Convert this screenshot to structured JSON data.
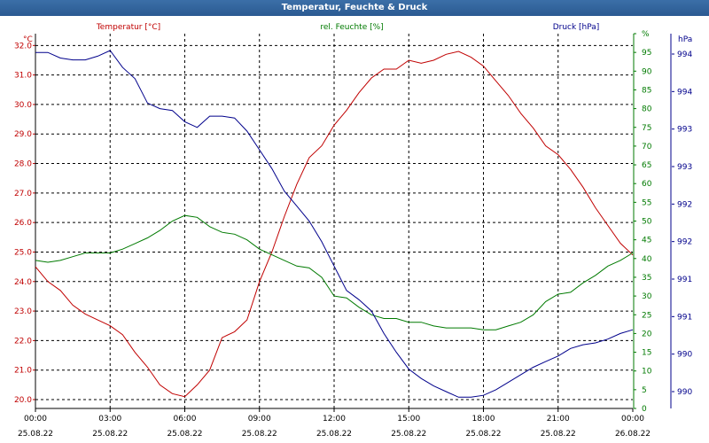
{
  "window": {
    "title": "Temperatur, Feuchte & Druck"
  },
  "colors": {
    "temperature": "#c00000",
    "humidity": "#007a00",
    "pressure": "#00008b",
    "grid": "#000000",
    "titlebar": "#2b5a91"
  },
  "chart_data": {
    "type": "line",
    "title": "Temperatur, Feuchte & Druck",
    "grid": true,
    "x_ticks": [
      {
        "time": "00:00",
        "date": "25.08.22"
      },
      {
        "time": "03:00",
        "date": "25.08.22"
      },
      {
        "time": "06:00",
        "date": "25.08.22"
      },
      {
        "time": "09:00",
        "date": "25.08.22"
      },
      {
        "time": "12:00",
        "date": "25.08.22"
      },
      {
        "time": "15:00",
        "date": "25.08.22"
      },
      {
        "time": "18:00",
        "date": "25.08.22"
      },
      {
        "time": "21:00",
        "date": "25.08.22"
      },
      {
        "time": "00:00",
        "date": "26.08.22"
      }
    ],
    "x_hours": [
      0,
      0.5,
      1,
      1.5,
      2,
      2.5,
      3,
      3.5,
      4,
      4.5,
      5,
      5.5,
      6,
      6.5,
      7,
      7.5,
      8,
      8.5,
      9,
      9.5,
      10,
      10.5,
      11,
      11.5,
      12,
      12.5,
      13,
      13.5,
      14,
      14.5,
      15,
      15.5,
      16,
      16.5,
      17,
      17.5,
      18,
      18.5,
      19,
      19.5,
      20,
      20.5,
      21,
      21.5,
      22,
      22.5,
      23,
      23.5,
      24
    ],
    "axes": {
      "temperature": {
        "unit_label": "°C",
        "ylim": [
          19.7,
          32.4
        ],
        "ticks": [
          "20.0",
          "21.0",
          "22.0",
          "23.0",
          "24.0",
          "25.0",
          "26.0",
          "27.0",
          "28.0",
          "29.0",
          "30.0",
          "31.0",
          "32.0"
        ]
      },
      "humidity": {
        "unit_label": "%",
        "ylim": [
          0,
          100
        ],
        "ticks": [
          "0",
          "5",
          "10",
          "15",
          "20",
          "25",
          "30",
          "35",
          "40",
          "45",
          "50",
          "55",
          "60",
          "65",
          "70",
          "75",
          "80",
          "85",
          "90",
          "95",
          "%"
        ]
      },
      "pressure": {
        "unit_label": "hPa",
        "ticks": [
          "990",
          "990",
          "991",
          "991",
          "992",
          "992",
          "993",
          "993",
          "994",
          "994"
        ]
      }
    },
    "series": [
      {
        "name": "Temperatur [°C]",
        "axis": "temperature",
        "values": [
          24.5,
          24.0,
          23.7,
          23.2,
          22.9,
          22.7,
          22.5,
          22.2,
          21.6,
          21.1,
          20.5,
          20.2,
          20.1,
          20.5,
          21.0,
          22.1,
          22.3,
          22.7,
          24.0,
          25.0,
          26.2,
          27.3,
          28.2,
          28.6,
          29.3,
          29.8,
          30.4,
          30.9,
          31.2,
          31.2,
          31.5,
          31.4,
          31.5,
          31.7,
          31.8,
          31.6,
          31.3,
          30.8,
          30.3,
          29.7,
          29.2,
          28.6,
          28.3,
          27.8,
          27.2,
          26.5,
          25.9,
          25.3,
          24.9
        ]
      },
      {
        "name": "rel. Feuchte [%]",
        "axis": "humidity",
        "values": [
          39.5,
          39.0,
          39.5,
          40.5,
          41.5,
          41.5,
          41.5,
          42.5,
          44.0,
          45.5,
          47.5,
          50.0,
          51.5,
          51.0,
          48.5,
          47.0,
          46.5,
          45.0,
          42.5,
          41.0,
          39.5,
          38.0,
          37.5,
          35.0,
          30.0,
          29.5,
          27.0,
          25.0,
          24.0,
          24.0,
          23.0,
          23.0,
          22.0,
          21.5,
          21.5,
          21.5,
          21.0,
          21.0,
          22.0,
          23.0,
          25.0,
          28.5,
          30.5,
          31.0,
          33.5,
          35.5,
          38.0,
          39.5,
          41.5
        ]
      },
      {
        "name": "Druck [hPa]",
        "axis": "pressure",
        "values": [
          95.0,
          95.0,
          93.5,
          93.0,
          93.0,
          94.0,
          95.5,
          91.0,
          88.0,
          81.5,
          80.0,
          79.5,
          76.5,
          75.0,
          78.0,
          78.0,
          77.5,
          74.0,
          69.0,
          64.0,
          58.0,
          54.0,
          50.0,
          44.5,
          38.0,
          31.5,
          29.0,
          26.0,
          20.0,
          15.0,
          10.5,
          8.0,
          6.0,
          4.5,
          3.0,
          3.0,
          3.5,
          5.0,
          7.0,
          9.0,
          11.0,
          12.5,
          14.0,
          16.0,
          17.0,
          17.5,
          18.5,
          20.0,
          21.0
        ]
      }
    ]
  }
}
